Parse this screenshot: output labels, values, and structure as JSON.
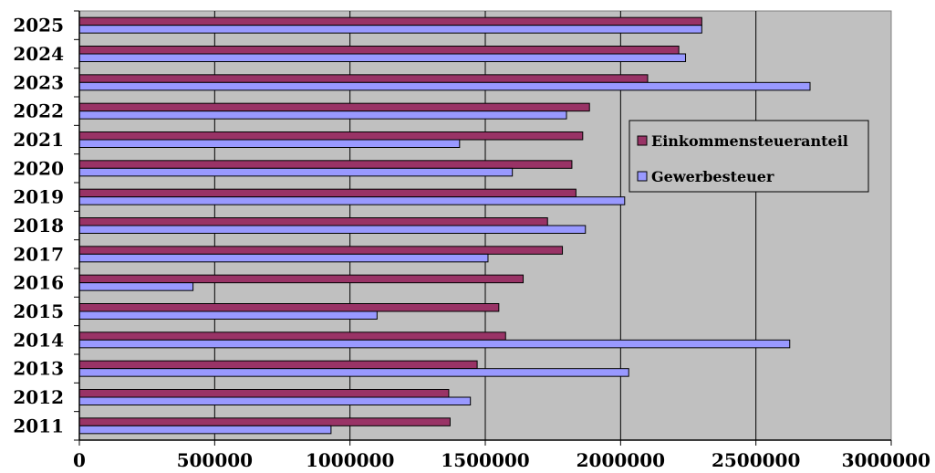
{
  "chart_data": {
    "type": "bar",
    "orientation": "horizontal",
    "title": "",
    "xlabel": "",
    "ylabel": "",
    "xlim": [
      0,
      3000000
    ],
    "x_ticks": [
      "0",
      "500000",
      "1000000",
      "1500000",
      "2000000",
      "2500000",
      "3000000"
    ],
    "categories": [
      "2011",
      "2012",
      "2013",
      "2014",
      "2015",
      "2016",
      "2017",
      "2018",
      "2019",
      "2020",
      "2021",
      "2022",
      "2023",
      "2024",
      "2025"
    ],
    "series": [
      {
        "name": "Einkommensteueranteil",
        "color": "#993366",
        "values": [
          1370000,
          1365000,
          1470000,
          1575000,
          1550000,
          1640000,
          1785000,
          1730000,
          1835000,
          1820000,
          1860000,
          1885000,
          2100000,
          2215000,
          2300000
        ]
      },
      {
        "name": "Gewerbesteuer",
        "color": "#9999FF",
        "values": [
          930000,
          1445000,
          2030000,
          2625000,
          1100000,
          420000,
          1510000,
          1870000,
          2015000,
          1600000,
          1405000,
          1800000,
          2700000,
          2240000,
          2300000
        ]
      }
    ],
    "grid": "vertical",
    "plot_background": "#C0C0C0",
    "legend_position": "right"
  }
}
